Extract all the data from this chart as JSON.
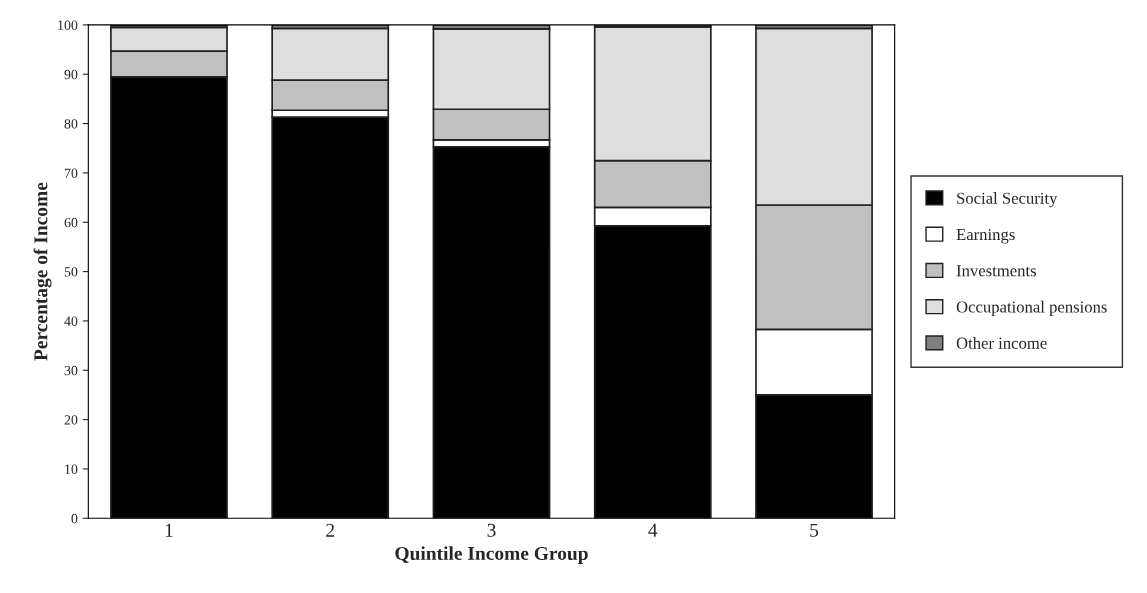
{
  "chart_data": {
    "type": "bar",
    "stacked": true,
    "xlabel": "Quintile Income Group",
    "ylabel": "Percentage of Income",
    "categories": [
      "1",
      "2",
      "3",
      "4",
      "5"
    ],
    "series": [
      {
        "name": "Social Security",
        "color": "#000000",
        "values": [
          89.5,
          81.3,
          75.3,
          59.3,
          25.0
        ]
      },
      {
        "name": "Earnings",
        "color": "#ffffff",
        "values": [
          null,
          1.4,
          1.4,
          3.7,
          13.3
        ]
      },
      {
        "name": "Investments",
        "color": "#c0c0c0",
        "values": [
          5.2,
          6.1,
          6.2,
          9.5,
          25.2
        ]
      },
      {
        "name": "Occupational pensions",
        "color": "#dedede",
        "values": [
          4.8,
          10.5,
          16.3,
          27.1,
          35.8
        ]
      },
      {
        "name": "Other income",
        "color": "#808080",
        "values": [
          0.4,
          0.7,
          0.8,
          0.4,
          0.7
        ]
      }
    ],
    "ylim": [
      0,
      100
    ],
    "yticks": [
      0,
      10,
      20,
      30,
      40,
      50,
      60,
      70,
      80,
      90,
      100
    ],
    "grid": false,
    "legend": "right"
  }
}
